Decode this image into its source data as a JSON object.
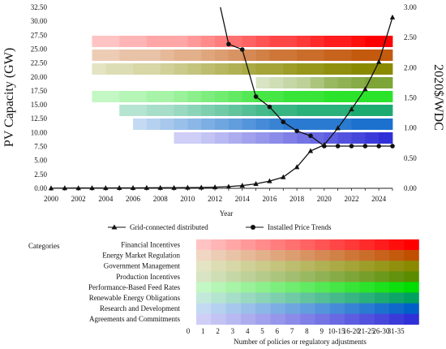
{
  "chart_data": {
    "type": "line",
    "x": [
      2000,
      2001,
      2002,
      2003,
      2004,
      2005,
      2006,
      2007,
      2008,
      2009,
      2010,
      2011,
      2012,
      2013,
      2014,
      2015,
      2016,
      2017,
      2018,
      2019,
      2020,
      2021,
      2022,
      2023,
      2024,
      2025
    ],
    "x_ticks": [
      "2000",
      "2002",
      "2004",
      "2006",
      "2008",
      "2010",
      "2012",
      "2014",
      "2016",
      "2018",
      "2020",
      "2022",
      "2024"
    ],
    "xlabel": "Year",
    "ylabel_left": "PV Capacity (GW)",
    "ylabel_right": "2020$/WDC",
    "ylim_left": [
      0,
      32.5
    ],
    "ylim_right": [
      0,
      3.0
    ],
    "y_ticks_left": [
      "0.00",
      "2.50",
      "5.00",
      "7.50",
      "10.00",
      "12.50",
      "15.00",
      "17.50",
      "20.00",
      "22.50",
      "25.00",
      "27.50",
      "30.00",
      "32.50"
    ],
    "y_ticks_right": [
      "0.00",
      "0.50",
      "1.00",
      "1.50",
      "2.00",
      "2.50",
      "3.00"
    ],
    "series": [
      {
        "name": "Grid-connected distributed",
        "axis": "left",
        "marker": "triangle",
        "values": [
          0.02,
          0.03,
          0.04,
          0.05,
          0.06,
          0.07,
          0.08,
          0.09,
          0.1,
          0.1,
          0.12,
          0.15,
          0.2,
          0.3,
          0.5,
          0.8,
          1.3,
          2.0,
          3.8,
          6.7,
          7.8,
          10.8,
          14.2,
          17.8,
          22.7,
          30.7
        ]
      },
      {
        "name": "Installed Price Trends",
        "axis": "right",
        "marker": "circle",
        "values": [
          null,
          null,
          null,
          null,
          null,
          null,
          null,
          null,
          null,
          null,
          null,
          null,
          null,
          2.39,
          2.3,
          1.52,
          1.35,
          1.1,
          0.95,
          0.87,
          0.7,
          0.7,
          0.7,
          0.7,
          0.7,
          0.7
        ],
        "lead_in": {
          "x": [
            2012.4,
            2013
          ],
          "values": [
            3.0,
            2.39
          ]
        }
      }
    ],
    "heatmap": {
      "row_years": [
        {
          "category": "Financial Incentives",
          "start": 2003,
          "end": 2025
        },
        {
          "category": "Energy Market Regulation",
          "start": 2003,
          "end": 2025
        },
        {
          "category": "Government Management",
          "start": 2003,
          "end": 2025
        },
        {
          "category": "Production Incentives",
          "start": 2015,
          "end": 2025
        },
        {
          "category": "Performance-Based Feed Rates",
          "start": 2003,
          "end": 2025
        },
        {
          "category": "Renewable Energy Obligations",
          "start": 2005,
          "end": 2025
        },
        {
          "category": "Research and Development",
          "start": 2006,
          "end": 2025
        },
        {
          "category": "Agreements and Commitments",
          "start": 2009,
          "end": 2025
        }
      ],
      "levels": [
        [
          1,
          1,
          2,
          2,
          3,
          3,
          3,
          4,
          5,
          6,
          7,
          8,
          9,
          10,
          10,
          11,
          12,
          13,
          13,
          14,
          15,
          15
        ],
        [
          2,
          2,
          3,
          3,
          3,
          4,
          5,
          5,
          6,
          7,
          8,
          9,
          10,
          11,
          11,
          12,
          12,
          13,
          13,
          14,
          14,
          14
        ],
        [
          1,
          2,
          2,
          3,
          3,
          4,
          5,
          6,
          7,
          8,
          9,
          10,
          11,
          11,
          12,
          13,
          13,
          14,
          14,
          15,
          15,
          15
        ],
        [
          1,
          2,
          3,
          4,
          6,
          8,
          9,
          10,
          11,
          11
        ],
        [
          1,
          1,
          2,
          2,
          3,
          3,
          4,
          5,
          6,
          7,
          8,
          9,
          10,
          10,
          11,
          11,
          11,
          12,
          12,
          12,
          12,
          12
        ],
        [
          2,
          2,
          3,
          3,
          4,
          5,
          6,
          7,
          8,
          9,
          10,
          11,
          11,
          12,
          12,
          12,
          12,
          13,
          13,
          13
        ],
        [
          1,
          2,
          3,
          4,
          5,
          6,
          7,
          8,
          9,
          10,
          11,
          12,
          12,
          12,
          12,
          12,
          13,
          13,
          13
        ],
        [
          1,
          1,
          2,
          3,
          4,
          5,
          6,
          7,
          8,
          9,
          10,
          11,
          12,
          13,
          14,
          15
        ]
      ]
    },
    "legend_entries": [
      "Grid-connected distributed",
      "Installed Price Trends"
    ],
    "categories_title": "Categories",
    "categories": [
      "Financial Incentives",
      "Energy Market Regulation",
      "Government Management",
      "Production Incentives",
      "Performance-Based Feed Rates",
      "Renewable Energy Obligations",
      "Research and Development",
      "Agreements and Commitments"
    ],
    "scale_labels": [
      "0",
      "1",
      "2",
      "3",
      "4",
      "5",
      "6",
      "7",
      "8",
      "9",
      "10-15",
      "16-20",
      "21-25",
      "26-30",
      "31-35"
    ],
    "scale_title": "Number of policies or regulatory adjustments",
    "palettes": [
      [
        "#ffffff",
        "#ff0000"
      ],
      [
        "#ffffff",
        "#c05000"
      ],
      [
        "#ffffff",
        "#8a8a00"
      ],
      [
        "#ffffff",
        "#5a8c00"
      ],
      [
        "#ffffff",
        "#00dd00"
      ],
      [
        "#ffffff",
        "#00a060"
      ],
      [
        "#ffffff",
        "#0060c8"
      ],
      [
        "#ffffff",
        "#3030d8"
      ]
    ]
  }
}
